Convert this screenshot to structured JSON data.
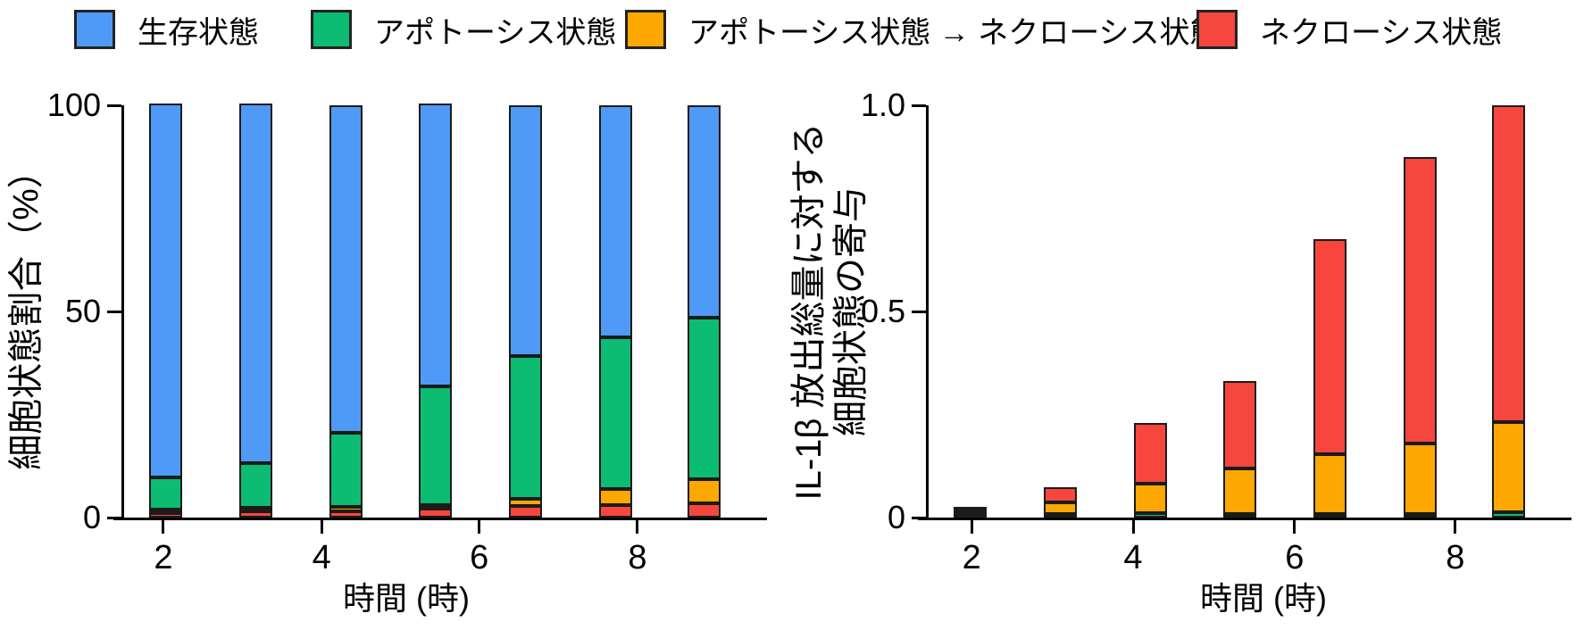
{
  "legend": {
    "items": [
      {
        "label": "生存状態",
        "color": "#4F9AF6"
      },
      {
        "label": "アポトーシス状態",
        "color": "#0DBC73"
      },
      {
        "label": "アポトーシス状態 → ネクローシス状態",
        "color": "#FFA701"
      },
      {
        "label": "ネクローシス状態",
        "color": "#F6463E"
      }
    ]
  },
  "colors": {
    "blue": "#4F9AF6",
    "green": "#0DBC73",
    "orange": "#FFA701",
    "red": "#F6463E",
    "axis": "#000000",
    "segment_border": "#1B1B1B"
  },
  "chart_data": [
    {
      "type": "bar",
      "stacked": true,
      "title": "",
      "ylabel": "細胞状態割合（%）",
      "xlabel": "時間 (時)",
      "x_hours": [
        2,
        3.2,
        4.3,
        5.4,
        6.6,
        7.7,
        8.8
      ],
      "xticks": [
        2,
        4,
        6,
        8
      ],
      "xticklabels": [
        "2",
        "4",
        "6",
        "8"
      ],
      "ylim": [
        0,
        100
      ],
      "yticks": [
        0,
        50,
        100
      ],
      "yticklabels": [
        "0",
        "50",
        "100"
      ],
      "grid": false,
      "legend_position": "top",
      "series_bottom_to_top": [
        {
          "name": "ネクローシス状態",
          "color": "red",
          "values": [
            1.1,
            1.5,
            1.6,
            2.2,
            2.8,
            3.0,
            3.5
          ]
        },
        {
          "name": "アポトーシス状態 → ネクローシス状態",
          "color": "orange",
          "values": [
            0.4,
            0.4,
            0.9,
            0.5,
            1.7,
            3.9,
            5.9
          ]
        },
        {
          "name": "アポトーシス状態",
          "color": "green",
          "values": [
            7.8,
            10.9,
            18.1,
            28.8,
            34.6,
            36.8,
            39.1
          ]
        },
        {
          "name": "生存状態",
          "color": "blue",
          "values": [
            90.7,
            87.2,
            79.4,
            68.5,
            60.9,
            56.3,
            51.5
          ]
        }
      ]
    },
    {
      "type": "bar",
      "stacked": true,
      "title": "",
      "ylabel_lines": [
        "IL-1β 放出総量に対する",
        "細胞状態の寄与"
      ],
      "xlabel": "時間 (時)",
      "x_hours": [
        2,
        3.2,
        4.3,
        5.4,
        6.6,
        7.7,
        8.8
      ],
      "xticks": [
        2,
        4,
        6,
        8
      ],
      "xticklabels": [
        "2",
        "4",
        "6",
        "8"
      ],
      "ylim": [
        0,
        1.0
      ],
      "yticks": [
        0,
        0.5,
        1.0
      ],
      "yticklabels": [
        "0",
        "0.5",
        "1.0"
      ],
      "grid": false,
      "legend_position": "top",
      "series_bottom_to_top": [
        {
          "name": "アポトーシス状態",
          "color": "green",
          "values": [
            0.002,
            0.008,
            0.01,
            0.008,
            0.006,
            0.004,
            0.012
          ]
        },
        {
          "name": "アポトーシス状態 → ネクローシス状態",
          "color": "orange",
          "values": [
            0.003,
            0.029,
            0.072,
            0.111,
            0.145,
            0.171,
            0.22
          ]
        },
        {
          "name": "ネクローシス状態",
          "color": "red",
          "values": [
            0.008,
            0.037,
            0.147,
            0.211,
            0.522,
            0.695,
            0.768
          ]
        }
      ]
    }
  ]
}
